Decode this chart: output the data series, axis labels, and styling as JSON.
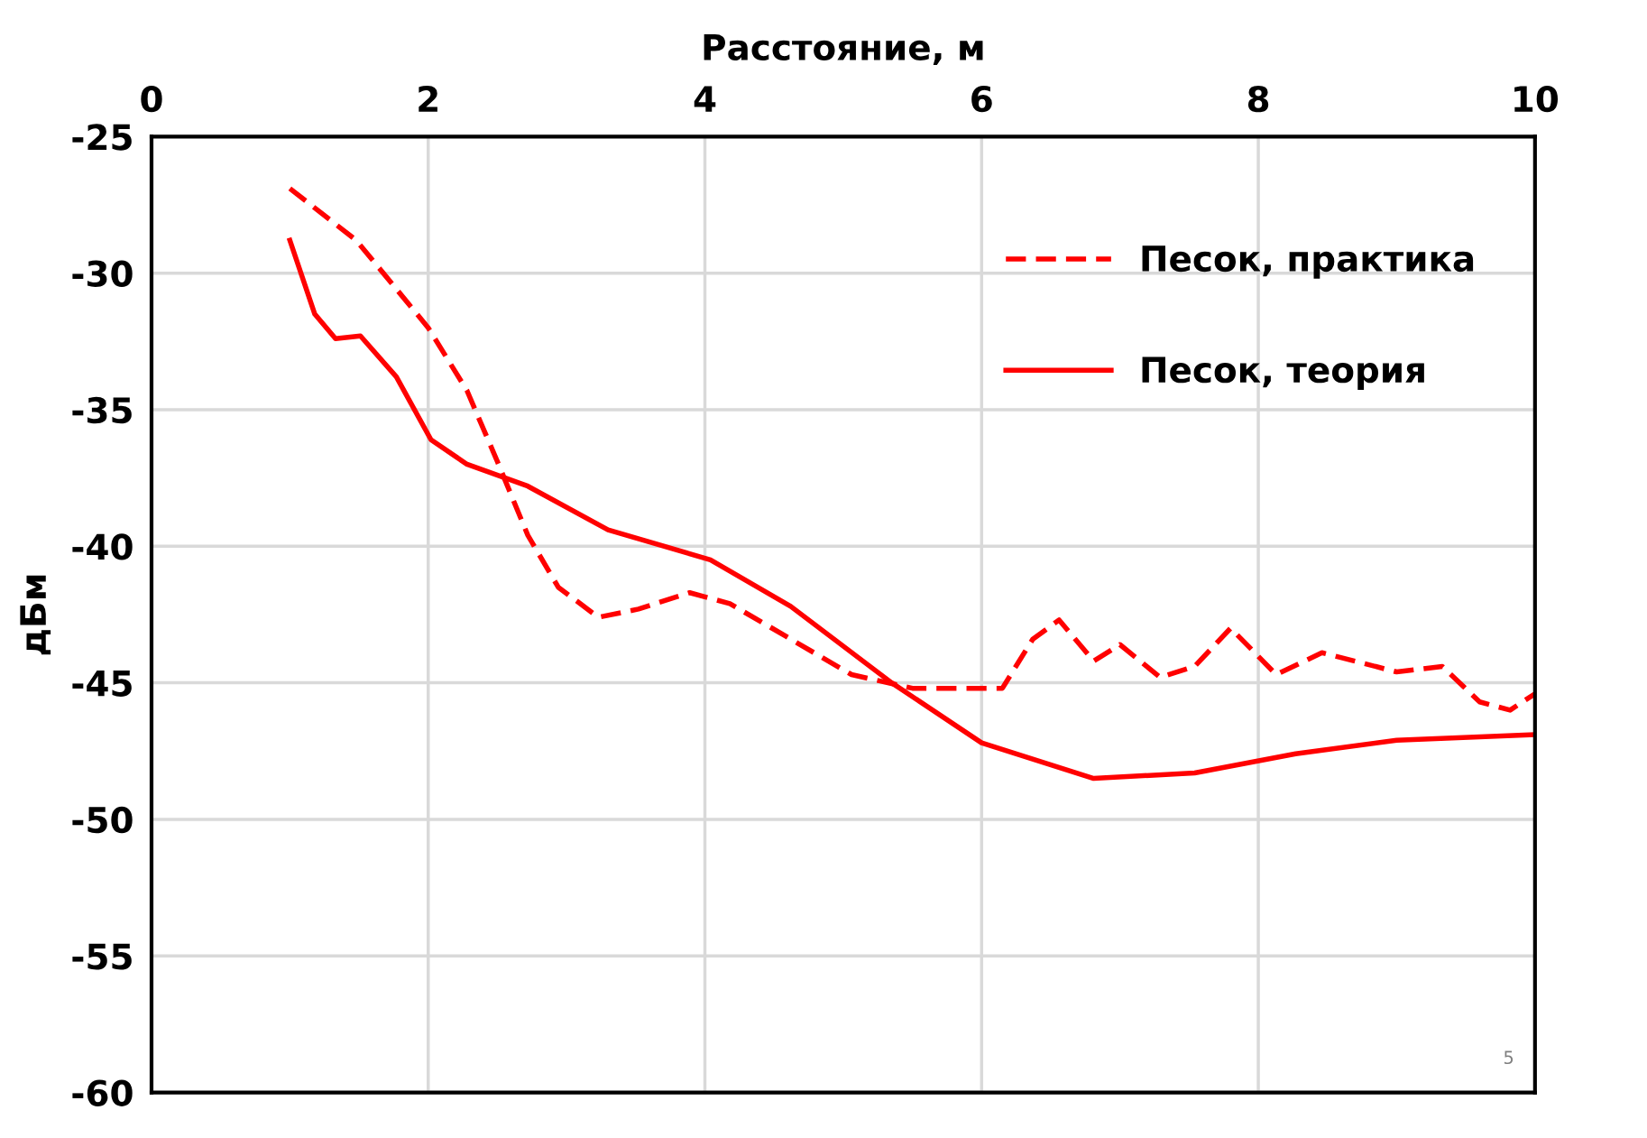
{
  "chart_data": {
    "type": "line",
    "xlabel": "Расстояние, м",
    "ylabel": "дБм",
    "xlim": [
      0,
      10
    ],
    "xticks": [
      0,
      2,
      4,
      6,
      8,
      10
    ],
    "ylim": [
      -60,
      -25
    ],
    "yticks": [
      -60,
      -55,
      -50,
      -45,
      -40,
      -35,
      -30,
      -25
    ],
    "grid": true,
    "legend": "top right",
    "series": [
      {
        "name": "Песок, практика",
        "color": "#ff0000",
        "line_style": "dashed",
        "x": [
          1.0,
          1.48,
          2.0,
          2.28,
          2.5,
          2.72,
          2.94,
          3.23,
          3.52,
          3.89,
          4.18,
          4.62,
          5.06,
          5.5,
          6.15,
          6.37,
          6.56,
          6.81,
          7.0,
          7.29,
          7.54,
          7.8,
          8.13,
          8.46,
          9.0,
          9.33,
          9.6,
          9.82,
          10.0
        ],
        "values": [
          -26.9,
          -28.8,
          -32.0,
          -34.3,
          -36.9,
          -39.6,
          -41.5,
          -42.6,
          -42.3,
          -41.7,
          -42.1,
          -43.4,
          -44.7,
          -45.2,
          -45.2,
          -43.4,
          -42.7,
          -44.2,
          -43.6,
          -44.8,
          -44.4,
          -43.0,
          -44.7,
          -43.9,
          -44.6,
          -44.4,
          -45.7,
          -46.0,
          -45.4
        ]
      },
      {
        "name": "Песок, теория",
        "color": "#ff0000",
        "line_style": "solid",
        "x": [
          1.0,
          1.18,
          1.33,
          1.51,
          1.77,
          2.02,
          2.28,
          2.72,
          3.3,
          4.04,
          4.62,
          5.35,
          6.0,
          6.81,
          7.54,
          8.27,
          9.0,
          10.0
        ],
        "values": [
          -28.8,
          -31.5,
          -32.4,
          -32.3,
          -33.8,
          -36.1,
          -37.0,
          -37.8,
          -39.4,
          -40.5,
          -42.2,
          -45.0,
          -47.2,
          -48.5,
          -48.3,
          -47.6,
          -47.1,
          -46.9
        ]
      }
    ],
    "annotations": [
      "5"
    ]
  }
}
